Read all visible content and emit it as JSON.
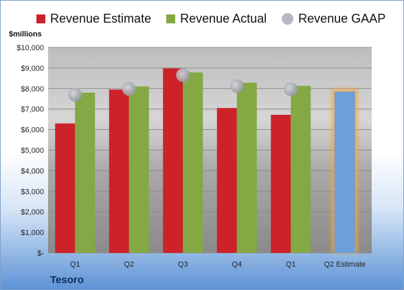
{
  "chart_data": {
    "type": "bar",
    "ylabel": "$millions",
    "company": "Tesoro",
    "ylim": [
      0,
      10000
    ],
    "yticks": [
      0,
      1000,
      2000,
      3000,
      4000,
      5000,
      6000,
      7000,
      8000,
      9000,
      10000
    ],
    "ytick_labels": [
      "$-",
      "$1,000",
      "$2,000",
      "$3,000",
      "$4,000",
      "$5,000",
      "$6,000",
      "$7,000",
      "$8,000",
      "$9,000",
      "$10,000"
    ],
    "categories": [
      "Q1",
      "Q2",
      "Q3",
      "Q4",
      "Q1",
      "Q2 Estimate"
    ],
    "legend": "top",
    "grid": true,
    "series": [
      {
        "name": "Revenue Estimate",
        "type": "bar",
        "color": "#cc2229",
        "values": [
          6300,
          7950,
          8980,
          7050,
          6720,
          null
        ]
      },
      {
        "name": "Revenue Actual",
        "type": "bar",
        "color": "#84a844",
        "values": [
          7800,
          8100,
          8780,
          8280,
          8130,
          null
        ]
      },
      {
        "name": "Revenue GAAP",
        "type": "scatter",
        "color": "#a9a9b4",
        "values": [
          7700,
          7980,
          8650,
          8120,
          7970,
          null
        ]
      }
    ],
    "estimate_bar": {
      "category_index": 5,
      "value": 7850,
      "color": "#6d9fd8",
      "highlight": "#f6a63a"
    }
  }
}
